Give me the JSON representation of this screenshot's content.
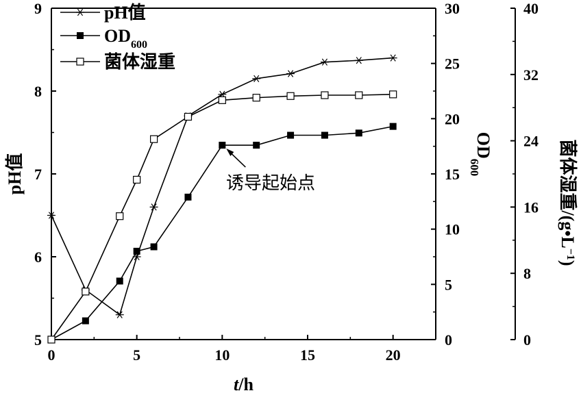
{
  "chart_data": {
    "type": "line",
    "x_axis": {
      "label_italic": "t",
      "label_rest": "/h",
      "range": [
        0,
        22.5
      ],
      "ticks": [
        "0",
        "5",
        "10",
        "15",
        "20"
      ]
    },
    "y_axes": [
      {
        "id": "ph",
        "label": "pH值",
        "range": [
          5,
          9
        ],
        "ticks": [
          "5",
          "6",
          "7",
          "8",
          "9"
        ]
      },
      {
        "id": "od",
        "label_main": "OD",
        "label_sub": "600",
        "range": [
          0,
          30
        ],
        "ticks": [
          "0",
          "5",
          "10",
          "15",
          "20",
          "25",
          "30"
        ]
      },
      {
        "id": "mass",
        "label_main": "菌体湿重/(g•L",
        "label_sup": "−1",
        "label_close": ")",
        "range": [
          0,
          40
        ],
        "ticks": [
          "0",
          "8",
          "16",
          "24",
          "32",
          "40"
        ]
      }
    ],
    "series": [
      {
        "name": "pH值",
        "axis": "ph",
        "marker": "asterisk",
        "x": [
          0,
          2,
          4,
          5,
          6,
          8,
          10,
          12,
          14,
          16,
          18,
          20
        ],
        "y": [
          6.5,
          5.6,
          5.3,
          6.0,
          6.6,
          7.7,
          7.96,
          8.15,
          8.21,
          8.35,
          8.37,
          8.4
        ]
      },
      {
        "name_main": "OD",
        "name_sub": "600",
        "axis": "od",
        "marker": "filled-square",
        "x": [
          0,
          2,
          4,
          5,
          6,
          8,
          10,
          12,
          14,
          16,
          18,
          20
        ],
        "y": [
          0,
          1.7,
          5.3,
          8,
          8.4,
          12.9,
          17.6,
          17.6,
          18.5,
          18.5,
          18.7,
          19.3
        ]
      },
      {
        "name": "菌体湿重",
        "axis": "mass",
        "marker": "open-square",
        "x": [
          0,
          2,
          4,
          5,
          6,
          8,
          10,
          12,
          14,
          16,
          18,
          20
        ],
        "y": [
          0,
          5.8,
          14.9,
          19.3,
          24.2,
          26.9,
          28.9,
          29.2,
          29.4,
          29.5,
          29.5,
          29.6
        ]
      }
    ],
    "legend": {
      "position": "top-left"
    },
    "annotation": {
      "text": "诱导起始点",
      "x": 10,
      "axis": "od",
      "y": 17.6
    },
    "grid": false
  }
}
